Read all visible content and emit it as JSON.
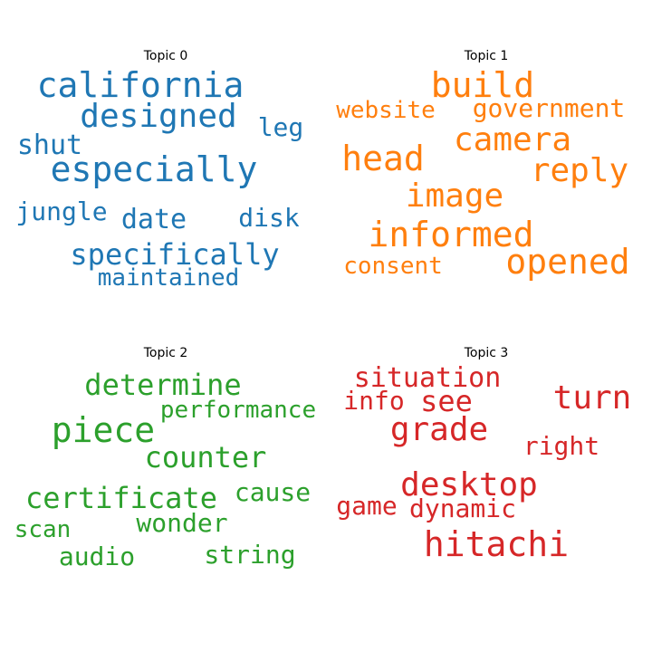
{
  "chart_data": {
    "type": "wordcloud",
    "panels": [
      {
        "title": "Topic 0",
        "color": "#1f77b4",
        "words": [
          {
            "text": "california",
            "weight": 38
          },
          {
            "text": "designed",
            "weight": 36
          },
          {
            "text": "especially",
            "weight": 38
          },
          {
            "text": "leg",
            "weight": 28
          },
          {
            "text": "shut",
            "weight": 30
          },
          {
            "text": "jungle",
            "weight": 28
          },
          {
            "text": "date",
            "weight": 30
          },
          {
            "text": "disk",
            "weight": 28
          },
          {
            "text": "specifically",
            "weight": 32
          },
          {
            "text": "maintained",
            "weight": 26
          }
        ]
      },
      {
        "title": "Topic 1",
        "color": "#ff7f0e",
        "words": [
          {
            "text": "build",
            "weight": 38
          },
          {
            "text": "website",
            "weight": 26
          },
          {
            "text": "government",
            "weight": 28
          },
          {
            "text": "camera",
            "weight": 36
          },
          {
            "text": "head",
            "weight": 38
          },
          {
            "text": "reply",
            "weight": 36
          },
          {
            "text": "image",
            "weight": 36
          },
          {
            "text": "informed",
            "weight": 38
          },
          {
            "text": "consent",
            "weight": 26
          },
          {
            "text": "opened",
            "weight": 38
          }
        ]
      },
      {
        "title": "Topic 2",
        "color": "#2ca02c",
        "words": [
          {
            "text": "determine",
            "weight": 32
          },
          {
            "text": "performance",
            "weight": 26
          },
          {
            "text": "piece",
            "weight": 38
          },
          {
            "text": "counter",
            "weight": 32
          },
          {
            "text": "certificate",
            "weight": 32
          },
          {
            "text": "cause",
            "weight": 28
          },
          {
            "text": "wonder",
            "weight": 28
          },
          {
            "text": "scan",
            "weight": 26
          },
          {
            "text": "audio",
            "weight": 28
          },
          {
            "text": "string",
            "weight": 28
          }
        ]
      },
      {
        "title": "Topic 3",
        "color": "#d62728",
        "words": [
          {
            "text": "situation",
            "weight": 30
          },
          {
            "text": "info",
            "weight": 28
          },
          {
            "text": "see",
            "weight": 32
          },
          {
            "text": "turn",
            "weight": 36
          },
          {
            "text": "grade",
            "weight": 36
          },
          {
            "text": "right",
            "weight": 28
          },
          {
            "text": "desktop",
            "weight": 36
          },
          {
            "text": "game",
            "weight": 28
          },
          {
            "text": "dynamic",
            "weight": 28
          },
          {
            "text": "hitachi",
            "weight": 38
          }
        ]
      }
    ]
  }
}
